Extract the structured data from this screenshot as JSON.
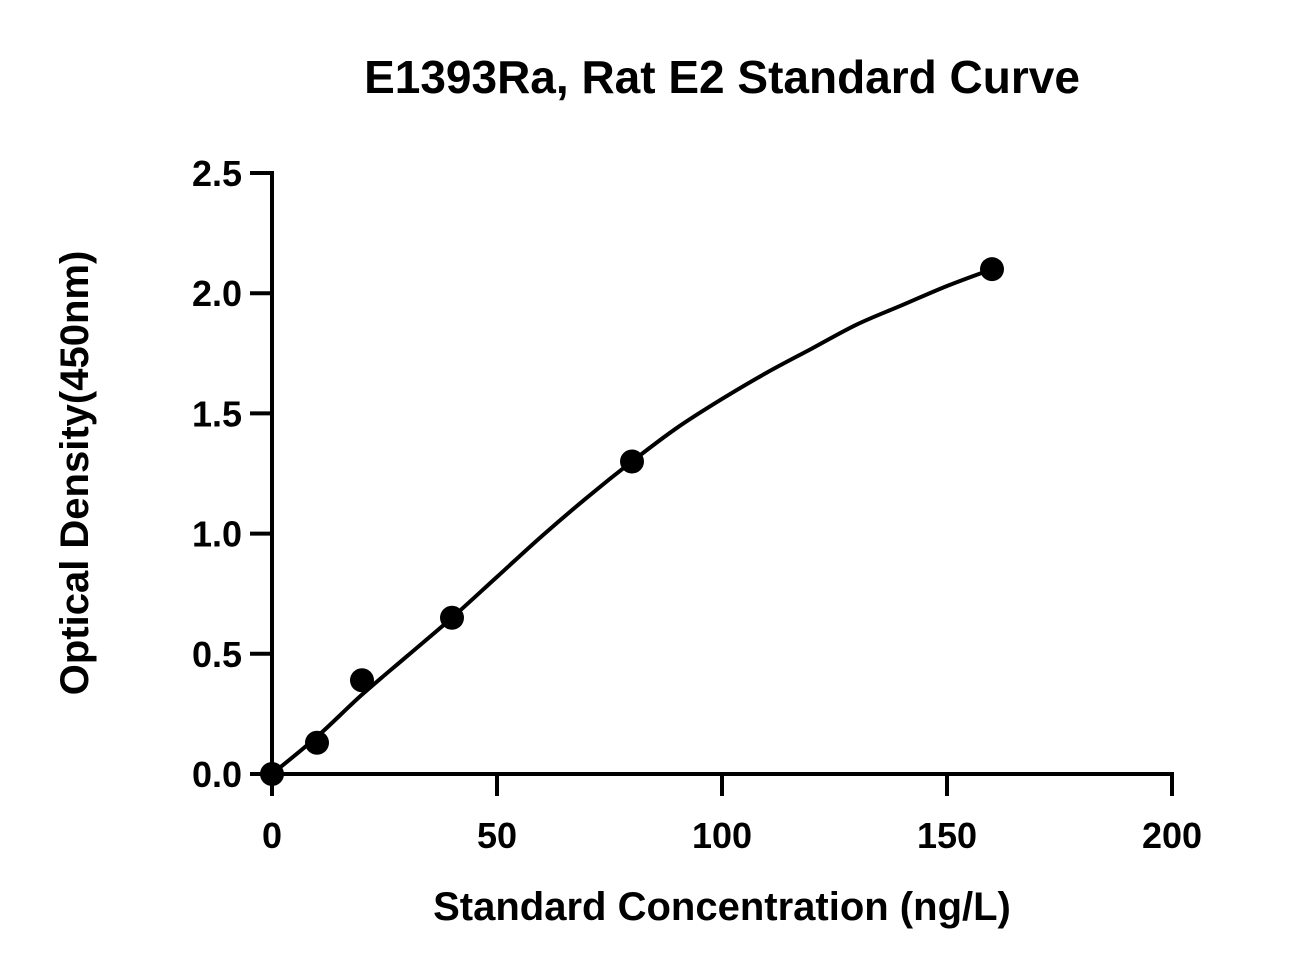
{
  "chart_data": {
    "type": "scatter",
    "title": "E1393Ra, Rat E2 Standard Curve",
    "xlabel": "Standard Concentration (ng/L)",
    "ylabel": "Optical Density(450nm)",
    "xlim": [
      0,
      200
    ],
    "ylim": [
      0,
      2.5
    ],
    "x_ticks": [
      0,
      50,
      100,
      150,
      200
    ],
    "x_tick_labels": [
      "0",
      "50",
      "100",
      "150",
      "200"
    ],
    "y_ticks": [
      0,
      0.5,
      1.0,
      1.5,
      2.0,
      2.5
    ],
    "y_tick_labels": [
      "0.0",
      "0.5",
      "1.0",
      "1.5",
      "2.0",
      "2.5"
    ],
    "grid": false,
    "series": [
      {
        "x": [
          0,
          10,
          20,
          40,
          80,
          160
        ],
        "y": [
          0.0,
          0.13,
          0.39,
          0.65,
          1.3,
          2.1
        ]
      }
    ],
    "fit_curve": {
      "x": [
        0,
        10,
        20,
        30,
        40,
        50,
        60,
        70,
        80,
        90,
        100,
        110,
        120,
        130,
        140,
        150,
        160
      ],
      "y": [
        0.0,
        0.155,
        0.33,
        0.49,
        0.65,
        0.82,
        0.99,
        1.15,
        1.3,
        1.44,
        1.56,
        1.67,
        1.77,
        1.87,
        1.95,
        2.03,
        2.1
      ]
    },
    "colors": {
      "marker": "#000000",
      "line": "#000000",
      "axis": "#000000"
    }
  }
}
